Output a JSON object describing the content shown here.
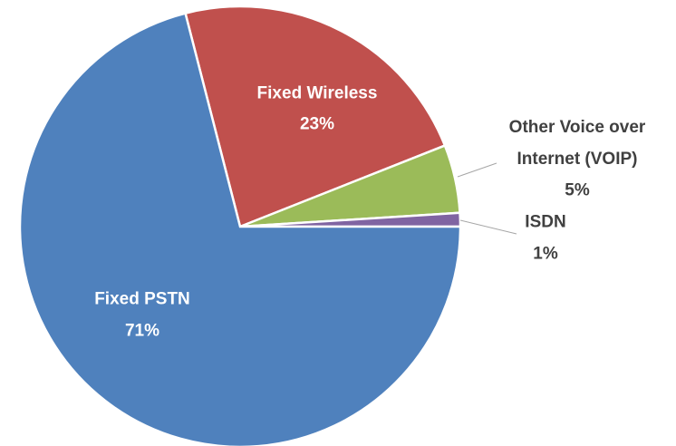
{
  "chart_data": {
    "type": "pie",
    "categories": [
      "Fixed Wireless",
      "Other Voice over Internet (VOIP)",
      "ISDN",
      "Fixed PSTN"
    ],
    "values": [
      23,
      5,
      1,
      71
    ],
    "value_labels": [
      "23%",
      "5%",
      "1%",
      "71%"
    ],
    "colors": [
      "#c0504d",
      "#9bbb59",
      "#8064a2",
      "#4f81bd"
    ]
  }
}
